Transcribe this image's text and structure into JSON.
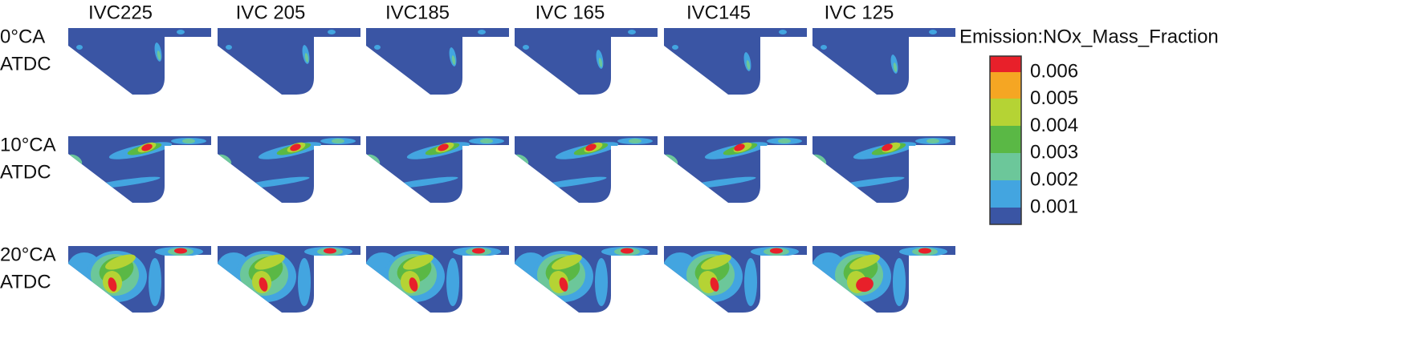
{
  "columns": [
    "IVC225",
    "IVC 205",
    "IVC185",
    "IVC 165",
    "IVC145",
    "IVC 125"
  ],
  "rows": [
    {
      "lines": [
        "0°CA",
        "ATDC"
      ]
    },
    {
      "lines": [
        "10°CA",
        "ATDC"
      ]
    },
    {
      "lines": [
        "20°CA",
        "ATDC"
      ]
    }
  ],
  "legend": {
    "title": "Emission:NOx_Mass_Fraction",
    "labels": [
      "0.006",
      "0.005",
      "0.004",
      "0.003",
      "0.002",
      "0.001"
    ]
  }
}
